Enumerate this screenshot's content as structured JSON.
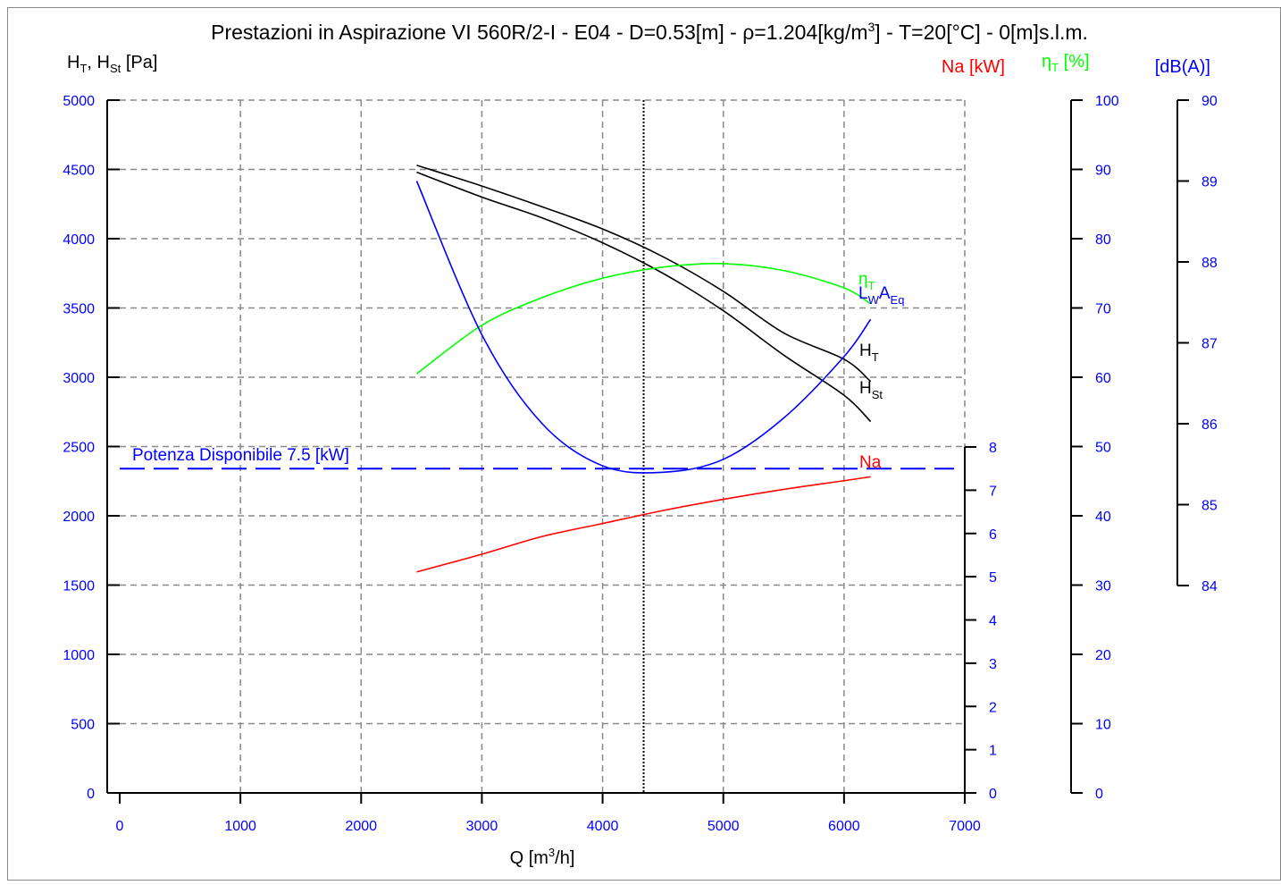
{
  "colors": {
    "pressure": "#000000",
    "power": "#ff0000",
    "efficiency": "#00ff00",
    "noise": "#0000ff",
    "tick_labels": "#0000ff",
    "grid": "#888888"
  },
  "chart_data": {
    "type": "line",
    "title": {
      "before_sup": "Prestazioni in Aspirazione VI 560R/2-I - E04 - D=0.53[m] - ρ=1.204[kg/m",
      "sup": "3",
      "after_sup": "] - T=20[°C] - 0[m]s.l.m."
    },
    "xlabel": {
      "before_sup": "Q [m",
      "sup": "3",
      "after_sup": "/h]"
    },
    "xlim": [
      0,
      7000
    ],
    "xticks": [
      0,
      1000,
      2000,
      3000,
      4000,
      5000,
      6000,
      7000
    ],
    "grid": true,
    "axes": {
      "pressure": {
        "label_parts": [
          "H",
          "T",
          ", H",
          "St",
          " [Pa]"
        ],
        "lim": [
          0,
          5000
        ],
        "ticks": [
          0,
          500,
          1000,
          1500,
          2000,
          2500,
          3000,
          3500,
          4000,
          4500,
          5000
        ]
      },
      "power": {
        "label": "Na [kW]",
        "lim": [
          0,
          8
        ],
        "ticks": [
          0,
          1,
          2,
          3,
          4,
          5,
          6,
          7,
          8
        ]
      },
      "efficiency": {
        "label_parts": [
          "η",
          "T",
          " [%]"
        ],
        "lim": [
          0,
          100
        ],
        "ticks": [
          0,
          10,
          20,
          30,
          40,
          50,
          60,
          70,
          80,
          90,
          100
        ]
      },
      "noise": {
        "label": "[dB(A)]",
        "lim": [
          84,
          90
        ],
        "ticks": [
          84,
          85,
          86,
          87,
          88,
          89,
          90
        ]
      }
    },
    "operating_point_q": 4340,
    "reference_line": {
      "label": "Potenza Disponibile 7.5 [kW]",
      "value_kw": 7.5,
      "axis": "power"
    },
    "series": [
      {
        "name_parts": [
          "H",
          "T"
        ],
        "axis": "pressure",
        "color_key": "pressure",
        "points": [
          [
            2460,
            4530
          ],
          [
            3000,
            4380
          ],
          [
            3500,
            4230
          ],
          [
            4000,
            4070
          ],
          [
            4500,
            3870
          ],
          [
            5000,
            3620
          ],
          [
            5500,
            3320
          ],
          [
            6000,
            3130
          ],
          [
            6220,
            2970
          ]
        ]
      },
      {
        "name_parts": [
          "H",
          "St"
        ],
        "axis": "pressure",
        "color_key": "pressure",
        "points": [
          [
            2460,
            4480
          ],
          [
            3000,
            4300
          ],
          [
            3500,
            4150
          ],
          [
            4000,
            3970
          ],
          [
            4500,
            3750
          ],
          [
            5000,
            3480
          ],
          [
            5500,
            3160
          ],
          [
            6000,
            2870
          ],
          [
            6220,
            2680
          ]
        ]
      },
      {
        "name_parts": [
          "Na",
          ""
        ],
        "axis": "power",
        "color_key": "power",
        "points": [
          [
            2460,
            5.11
          ],
          [
            3000,
            5.52
          ],
          [
            3500,
            5.93
          ],
          [
            4000,
            6.23
          ],
          [
            4500,
            6.53
          ],
          [
            5000,
            6.79
          ],
          [
            5500,
            7.02
          ],
          [
            6000,
            7.22
          ],
          [
            6220,
            7.31
          ]
        ]
      },
      {
        "name_parts": [
          "η",
          "T"
        ],
        "axis": "efficiency",
        "color_key": "efficiency",
        "points": [
          [
            2460,
            60.5
          ],
          [
            3000,
            67.5
          ],
          [
            3500,
            71.5
          ],
          [
            4000,
            74.3
          ],
          [
            4500,
            75.9
          ],
          [
            5000,
            76.4
          ],
          [
            5500,
            75.4
          ],
          [
            6000,
            72.9
          ],
          [
            6220,
            70.6
          ]
        ]
      },
      {
        "name_parts": [
          "L",
          "W",
          "A",
          "Eq"
        ],
        "axis": "noise",
        "color_key": "noise",
        "points": [
          [
            2460,
            89.0
          ],
          [
            3000,
            87.1
          ],
          [
            3500,
            86.0
          ],
          [
            4000,
            85.48
          ],
          [
            4500,
            85.4
          ],
          [
            5000,
            85.56
          ],
          [
            5500,
            86.07
          ],
          [
            6000,
            86.83
          ],
          [
            6220,
            87.29
          ]
        ]
      }
    ]
  }
}
